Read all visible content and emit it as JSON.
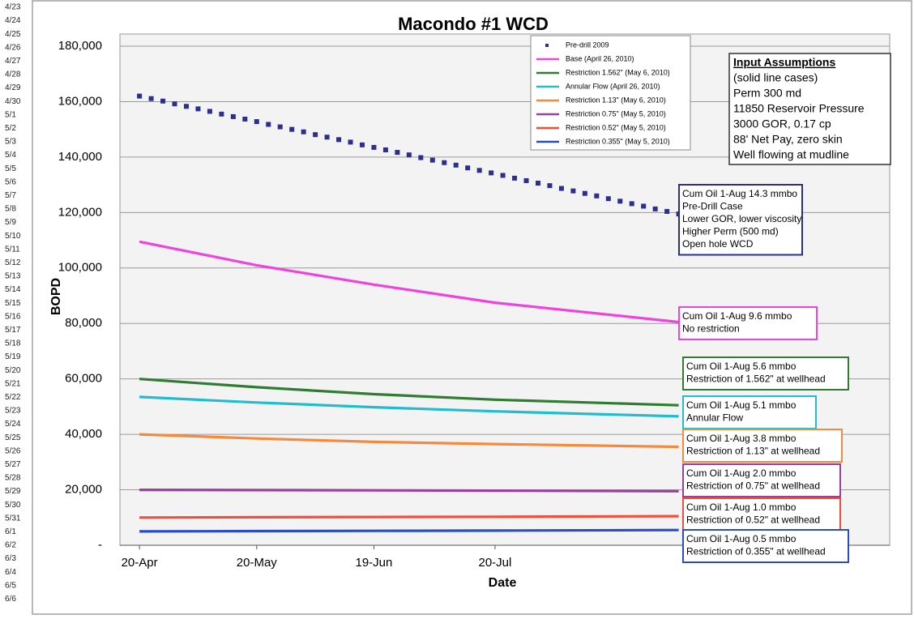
{
  "side_labels": [
    "4/23",
    "4/24",
    "4/25",
    "4/26",
    "4/27",
    "4/28",
    "4/29",
    "4/30",
    "5/1",
    "5/2",
    "5/3",
    "5/4",
    "5/5",
    "5/6",
    "5/7",
    "5/8",
    "5/9",
    "5/10",
    "5/11",
    "5/12",
    "5/13",
    "5/14",
    "5/15",
    "5/16",
    "5/17",
    "5/18",
    "5/19",
    "5/20",
    "5/21",
    "5/22",
    "5/23",
    "5/24",
    "5/25",
    "5/26",
    "5/27",
    "5/28",
    "5/29",
    "5/30",
    "5/31",
    "6/1",
    "6/2",
    "6/3",
    "6/4",
    "6/5",
    "6/6"
  ],
  "chart_data": {
    "type": "line",
    "title": "Macondo #1 WCD",
    "x_label": "Date",
    "y_label": "BOPD",
    "grid": true,
    "xlim": [
      -5,
      192
    ],
    "xticks": [
      {
        "value": 0,
        "label": "20-Apr"
      },
      {
        "value": 30,
        "label": "20-May"
      },
      {
        "value": 60,
        "label": "19-Jun"
      },
      {
        "value": 91,
        "label": "20-Jul"
      }
    ],
    "ylim": [
      0,
      180000
    ],
    "yticks": [
      {
        "value": 0,
        "label": "-"
      },
      {
        "value": 20000,
        "label": "20,000"
      },
      {
        "value": 40000,
        "label": "40,000"
      },
      {
        "value": 60000,
        "label": "60,000"
      },
      {
        "value": 80000,
        "label": "80,000"
      },
      {
        "value": 100000,
        "label": "100,000"
      },
      {
        "value": 120000,
        "label": "120,000"
      },
      {
        "value": 140000,
        "label": "140,000"
      },
      {
        "value": 160000,
        "label": "160,000"
      },
      {
        "value": 180000,
        "label": "180,000"
      }
    ],
    "series": [
      {
        "name": "Pre-drill 2009",
        "color": "#2b2f8f",
        "style": "markers",
        "x": [
          0,
          3,
          6,
          9,
          12,
          15,
          18,
          21,
          24,
          27,
          30,
          33,
          36,
          39,
          42,
          45,
          48,
          51,
          54,
          57,
          60,
          63,
          66,
          69,
          72,
          75,
          78,
          81,
          84,
          87,
          90,
          93,
          96,
          99,
          102,
          105,
          108,
          111,
          114,
          117,
          120,
          123,
          126,
          129,
          132,
          135,
          138
        ],
        "values": [
          162000,
          161100,
          160200,
          159200,
          158300,
          157400,
          156500,
          155500,
          154600,
          153700,
          152800,
          151800,
          150900,
          150000,
          149100,
          148100,
          147200,
          146300,
          145400,
          144400,
          143500,
          142600,
          141700,
          140800,
          139800,
          138900,
          138000,
          137100,
          136100,
          135200,
          134300,
          133400,
          132400,
          131500,
          130600,
          129700,
          128700,
          127800,
          126900,
          126000,
          125000,
          124100,
          123200,
          122300,
          121300,
          120400,
          119500
        ]
      },
      {
        "name": "Base (April 26, 2010)",
        "color": "#ee44dd",
        "style": "line",
        "x": [
          0,
          30,
          60,
          91,
          138
        ],
        "values": [
          109500,
          101000,
          94000,
          87500,
          80500
        ]
      },
      {
        "name": "Restriction 1.562\" (May 6, 2010)",
        "color": "#2e7d32",
        "style": "line",
        "x": [
          0,
          30,
          60,
          91,
          138
        ],
        "values": [
          60000,
          57000,
          54500,
          52500,
          50500
        ]
      },
      {
        "name": "Annular Flow (April 26, 2010)",
        "color": "#22bcd0",
        "style": "line",
        "x": [
          0,
          30,
          60,
          91,
          138
        ],
        "values": [
          53500,
          51500,
          49800,
          48300,
          46500
        ]
      },
      {
        "name": "Restriction 1.13\" (May 6, 2010)",
        "color": "#f58a3c",
        "style": "line",
        "x": [
          0,
          30,
          60,
          91,
          138
        ],
        "values": [
          40000,
          38500,
          37300,
          36500,
          35500
        ]
      },
      {
        "name": "Restriction 0.75\" (May 5, 2010)",
        "color": "#9b3fa0",
        "style": "line",
        "x": [
          0,
          30,
          60,
          91,
          138
        ],
        "values": [
          20000,
          19900,
          19800,
          19700,
          19500
        ]
      },
      {
        "name": "Restriction 0.52\" (May 5, 2010)",
        "color": "#f0503a",
        "style": "line",
        "x": [
          0,
          30,
          60,
          91,
          138
        ],
        "values": [
          10000,
          10100,
          10200,
          10300,
          10500
        ]
      },
      {
        "name": "Restriction 0.355\" (May 5, 2010)",
        "color": "#2a4ec0",
        "style": "line",
        "x": [
          0,
          30,
          60,
          91,
          138
        ],
        "values": [
          5000,
          5100,
          5200,
          5300,
          5500
        ]
      }
    ],
    "annotations": [
      {
        "color": "#2b2f8f",
        "lines": [
          "Cum Oil 1-Aug 14.3 mmbo",
          "Pre-Drill Case",
          "Lower GOR, lower viscosity",
          "Higher Perm (500 md)",
          "Open hole WCD"
        ]
      },
      {
        "color": "#ee44dd",
        "lines": [
          "Cum Oil 1-Aug 9.6 mmbo",
          "No restriction"
        ]
      },
      {
        "color": "#2e7d32",
        "lines": [
          "Cum Oil 1-Aug 5.6 mmbo",
          "Restriction of 1.562\" at wellhead"
        ]
      },
      {
        "color": "#22bcd0",
        "lines": [
          "Cum Oil 1-Aug 5.1 mmbo",
          "Annular Flow"
        ]
      },
      {
        "color": "#f58a3c",
        "lines": [
          "Cum Oil 1-Aug 3.8 mmbo",
          "Restriction of 1.13\" at wellhead"
        ]
      },
      {
        "color": "#9b3fa0",
        "lines": [
          "Cum Oil 1-Aug 2.0 mmbo",
          "Restriction of 0.75\" at wellhead"
        ]
      },
      {
        "color": "#f0503a",
        "lines": [
          "Cum Oil 1-Aug 1.0 mmbo",
          "Restriction of 0.52\" at wellhead"
        ]
      },
      {
        "color": "#2a4ec0",
        "lines": [
          "Cum Oil 1-Aug 0.5 mmbo",
          "Restriction of 0.355\" at wellhead"
        ]
      }
    ],
    "input_assumptions": {
      "title": "Input Assumptions",
      "lines": [
        "(solid line cases)",
        "Perm 300 md",
        "11850 Reservoir Pressure",
        "3000 GOR, 0.17 cp",
        "88' Net Pay, zero skin",
        "Well flowing at mudline"
      ]
    }
  }
}
